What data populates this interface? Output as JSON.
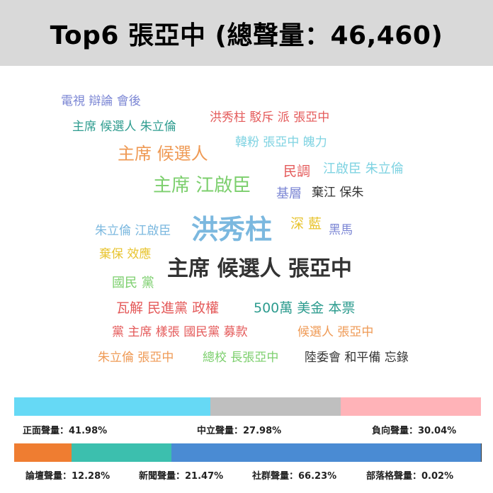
{
  "header": {
    "title": "Top6 張亞中 (總聲量：46,460)"
  },
  "word_cloud": [
    {
      "text": "電視 辯論 會後",
      "color": "#7b86d4",
      "size": 17
    },
    {
      "text": "主席 候選人 朱立倫",
      "color": "#2e9c8f",
      "size": 17
    },
    {
      "text": "洪秀柱 駁斥 派 張亞中",
      "color": "#e45a5a",
      "size": 17
    },
    {
      "text": "韓粉 張亞中 魄力",
      "color": "#7fd3e2",
      "size": 17
    },
    {
      "text": "主席 候選人",
      "color": "#ef9a55",
      "size": 24
    },
    {
      "text": "民調",
      "color": "#e45a5a",
      "size": 19
    },
    {
      "text": "江啟臣 朱立倫",
      "color": "#7fd3e2",
      "size": 18
    },
    {
      "text": "主席 江啟臣",
      "color": "#7ccf6d",
      "size": 26
    },
    {
      "text": "基層",
      "color": "#7b86d4",
      "size": 18
    },
    {
      "text": "棄江 保朱",
      "color": "#333333",
      "size": 17
    },
    {
      "text": "朱立倫 江啟臣",
      "color": "#7bb8df",
      "size": 17
    },
    {
      "text": "洪秀柱",
      "color": "#7bb8df",
      "size": 38
    },
    {
      "text": "深 藍",
      "color": "#e8c430",
      "size": 19
    },
    {
      "text": "黑馬",
      "color": "#7b86d4",
      "size": 17
    },
    {
      "text": "棄保 效應",
      "color": "#e8c430",
      "size": 17
    },
    {
      "text": "主席 候選人 張亞中",
      "color": "#333333",
      "size": 30
    },
    {
      "text": "國民 黨",
      "color": "#7ccf6d",
      "size": 18
    },
    {
      "text": "瓦解 民進黨 政權",
      "color": "#e45a5a",
      "size": 19
    },
    {
      "text": "500萬 美金 本票",
      "color": "#2e9c8f",
      "size": 19
    },
    {
      "text": "黨 主席 樣張 國民黨 募款",
      "color": "#e45a5a",
      "size": 17
    },
    {
      "text": "候選人 張亞中",
      "color": "#ef9a55",
      "size": 17
    },
    {
      "text": "朱立倫 張亞中",
      "color": "#ef9a55",
      "size": 17
    },
    {
      "text": "總校 長張亞中",
      "color": "#7ccf6d",
      "size": 17
    },
    {
      "text": "陸委會 和平備 忘錄",
      "color": "#333333",
      "size": 17
    }
  ],
  "sentiment": {
    "colors": {
      "positive": "#66d9f5",
      "neutral": "#bfbfbf",
      "negative": "#ffb3b8"
    },
    "segments": [
      {
        "key": "positive",
        "label": "正面聲量：41.98%",
        "value": 41.98
      },
      {
        "key": "neutral",
        "label": "中立聲量：27.98%",
        "value": 27.98
      },
      {
        "key": "negative",
        "label": "負向聲量：30.04%",
        "value": 30.04
      }
    ]
  },
  "source": {
    "colors": {
      "forum": "#ef7d31",
      "news": "#3cbfae",
      "social": "#4a8bd3",
      "blog": "#333333"
    },
    "segments": [
      {
        "key": "forum",
        "label": "論壇聲量：12.28%",
        "value": 12.28
      },
      {
        "key": "news",
        "label": "新聞聲量：21.47%",
        "value": 21.47
      },
      {
        "key": "social",
        "label": "社群聲量：66.23%",
        "value": 66.23
      },
      {
        "key": "blog",
        "label": "部落格聲量：0.02%",
        "value": 0.02
      }
    ]
  }
}
